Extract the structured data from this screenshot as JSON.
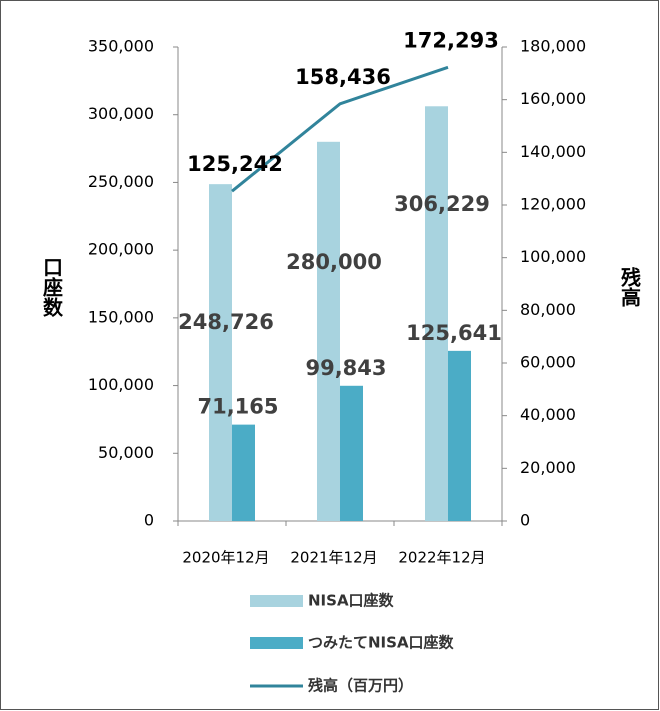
{
  "chart_data": {
    "type": "bar",
    "categories": [
      "2020年12月",
      "2021年12月",
      "2022年12月"
    ],
    "ylabel": "口座数",
    "y2label": "残高",
    "ylim": [
      0,
      350000
    ],
    "yticks": [
      0,
      {
        "value": 50000,
        "label": "50,000"
      },
      {
        "value": 100000,
        "label": "100,000"
      },
      {
        "value": 150000,
        "label": "150,000"
      },
      {
        "value": 200000,
        "label": "200,000"
      },
      {
        "value": 250000,
        "label": "250,000"
      },
      {
        "value": 300000,
        "label": "300,000"
      },
      {
        "value": 350000,
        "label": "350,000"
      }
    ],
    "y2lim": [
      0,
      180000
    ],
    "y2ticks": [
      0,
      {
        "value": 20000,
        "label": "20,000"
      },
      {
        "value": 40000,
        "label": "40,000"
      },
      {
        "value": 60000,
        "label": "60,000"
      },
      {
        "value": 80000,
        "label": "80,000"
      },
      {
        "value": 100000,
        "label": "100,000"
      },
      {
        "value": 120000,
        "label": "120,000"
      },
      {
        "value": 140000,
        "label": "140,000"
      },
      {
        "value": 160000,
        "label": "160,000"
      },
      {
        "value": 180000,
        "label": "180,000"
      }
    ],
    "series": [
      {
        "name": "NISA口座数",
        "type": "bar",
        "color": "#a8d3df",
        "values": [
          248726,
          280000,
          306229
        ],
        "value_labels": [
          "248,726",
          "280,000",
          "306,229"
        ]
      },
      {
        "name": "つみたてNISA口座数",
        "type": "bar",
        "color": "#4bacc6",
        "values": [
          71165,
          99843,
          125641
        ],
        "value_labels": [
          "71,165",
          "99,843",
          "125,641"
        ]
      },
      {
        "name": "残高（百万円）",
        "type": "line",
        "axis": "y2",
        "color": "#31849b",
        "values": [
          125242,
          158436,
          172293
        ],
        "value_labels": [
          "125,242",
          "158,436",
          "172,293"
        ]
      }
    ]
  }
}
